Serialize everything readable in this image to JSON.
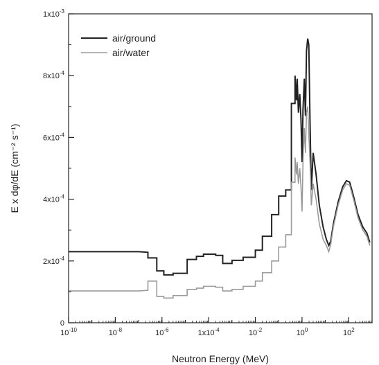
{
  "chart_data": {
    "type": "line",
    "xscale": "log",
    "xlabel": "Neutron Energy (MeV)",
    "ylabel": "E x dφ/dE (cm⁻² s⁻¹)",
    "xlim": [
      1e-10,
      1000
    ],
    "ylim": [
      0,
      0.001
    ],
    "grid": false,
    "legend_position": "top-left",
    "x_ticks": [
      {
        "value": 1e-10,
        "base": "10",
        "exp": "-10"
      },
      {
        "value": 1e-08,
        "base": "10",
        "exp": "-8"
      },
      {
        "value": 1e-06,
        "base": "10",
        "exp": "-6"
      },
      {
        "value": 0.0001,
        "base": "1x10",
        "exp": "-4"
      },
      {
        "value": 0.01,
        "base": "10",
        "exp": "-2"
      },
      {
        "value": 1,
        "base": "10",
        "exp": "0"
      },
      {
        "value": 100,
        "base": "10",
        "exp": "2"
      }
    ],
    "y_ticks": [
      {
        "value": 0,
        "base": "0",
        "exp": ""
      },
      {
        "value": 0.0002,
        "base": "2x10",
        "exp": "-4"
      },
      {
        "value": 0.0004,
        "base": "4x10",
        "exp": "-4"
      },
      {
        "value": 0.0006,
        "base": "6x10",
        "exp": "-4"
      },
      {
        "value": 0.0008,
        "base": "8x10",
        "exp": "-4"
      },
      {
        "value": 0.001,
        "base": "1x10",
        "exp": "-3"
      }
    ],
    "series": [
      {
        "name": "air/ground",
        "color": "#222222",
        "points": [
          [
            1e-10,
            0.00023
          ],
          [
            1e-07,
            0.00023
          ],
          [
            2.5e-07,
            0.000228
          ],
          [
            2.5e-07,
            0.00021
          ],
          [
            6e-07,
            0.00021
          ],
          [
            6e-07,
            0.000168
          ],
          [
            1.2e-06,
            0.000168
          ],
          [
            1.2e-06,
            0.000155
          ],
          [
            3e-06,
            0.000155
          ],
          [
            3e-06,
            0.00016
          ],
          [
            1.2e-05,
            0.00016
          ],
          [
            1.2e-05,
            0.000205
          ],
          [
            3e-05,
            0.000205
          ],
          [
            3e-05,
            0.000215
          ],
          [
            6e-05,
            0.000215
          ],
          [
            6e-05,
            0.000222
          ],
          [
            0.0002,
            0.000222
          ],
          [
            0.0002,
            0.000218
          ],
          [
            0.0004,
            0.000218
          ],
          [
            0.0004,
            0.000192
          ],
          [
            0.001,
            0.000192
          ],
          [
            0.001,
            0.000202
          ],
          [
            0.003,
            0.000202
          ],
          [
            0.003,
            0.000212
          ],
          [
            0.01,
            0.000212
          ],
          [
            0.01,
            0.000235
          ],
          [
            0.02,
            0.000235
          ],
          [
            0.02,
            0.00028
          ],
          [
            0.05,
            0.00028
          ],
          [
            0.05,
            0.00035
          ],
          [
            0.1,
            0.00035
          ],
          [
            0.1,
            0.00041
          ],
          [
            0.2,
            0.00041
          ],
          [
            0.2,
            0.00043
          ],
          [
            0.35,
            0.00043
          ],
          [
            0.35,
            0.00071
          ],
          [
            0.5,
            0.00071
          ],
          [
            0.5,
            0.0008
          ],
          [
            0.58,
            0.00072
          ],
          [
            0.62,
            0.00079
          ],
          [
            0.7,
            0.00068
          ],
          [
            0.8,
            0.00074
          ],
          [
            0.9,
            0.00066
          ],
          [
            1.0,
            0.00052
          ],
          [
            1.1,
            0.00069
          ],
          [
            1.25,
            0.00079
          ],
          [
            1.4,
            0.00067
          ],
          [
            1.55,
            0.00088
          ],
          [
            1.75,
            0.00092
          ],
          [
            1.95,
            0.0009
          ],
          [
            2.2,
            0.00065
          ],
          [
            2.5,
            0.00043
          ],
          [
            3.0,
            0.00055
          ],
          [
            4.0,
            0.00048
          ],
          [
            5.5,
            0.00038
          ],
          [
            8.0,
            0.00031
          ],
          [
            11,
            0.00027
          ],
          [
            14,
            0.00025
          ],
          [
            17,
            0.000265
          ],
          [
            22,
            0.00032
          ],
          [
            35,
            0.00039
          ],
          [
            55,
            0.00044
          ],
          [
            80,
            0.00046
          ],
          [
            110,
            0.000455
          ],
          [
            160,
            0.00041
          ],
          [
            250,
            0.00035
          ],
          [
            400,
            0.00031
          ],
          [
            600,
            0.00029
          ],
          [
            800,
            0.00026
          ]
        ]
      },
      {
        "name": "air/water",
        "color": "#9a9a9a",
        "points": [
          [
            1e-10,
            0.000103
          ],
          [
            1e-07,
            0.000103
          ],
          [
            2.5e-07,
            0.000105
          ],
          [
            2.5e-07,
            0.000135
          ],
          [
            6e-07,
            0.000135
          ],
          [
            6e-07,
            8.5e-05
          ],
          [
            1.2e-06,
            8.5e-05
          ],
          [
            1.2e-06,
            8e-05
          ],
          [
            3e-06,
            8e-05
          ],
          [
            3e-06,
            8.8e-05
          ],
          [
            1.2e-05,
            8.8e-05
          ],
          [
            1.2e-05,
            0.000108
          ],
          [
            3e-05,
            0.000108
          ],
          [
            3e-05,
            0.000112
          ],
          [
            6e-05,
            0.000112
          ],
          [
            6e-05,
            0.000118
          ],
          [
            0.0002,
            0.000118
          ],
          [
            0.0002,
            0.000115
          ],
          [
            0.0004,
            0.000115
          ],
          [
            0.0004,
            0.000103
          ],
          [
            0.001,
            0.000103
          ],
          [
            0.001,
            0.000108
          ],
          [
            0.003,
            0.000108
          ],
          [
            0.003,
            0.000118
          ],
          [
            0.01,
            0.000118
          ],
          [
            0.01,
            0.000135
          ],
          [
            0.02,
            0.000135
          ],
          [
            0.02,
            0.000162
          ],
          [
            0.05,
            0.000162
          ],
          [
            0.05,
            0.0002
          ],
          [
            0.1,
            0.0002
          ],
          [
            0.1,
            0.000245
          ],
          [
            0.2,
            0.000245
          ],
          [
            0.2,
            0.000285
          ],
          [
            0.35,
            0.000285
          ],
          [
            0.35,
            0.000455
          ],
          [
            0.5,
            0.000455
          ],
          [
            0.5,
            0.000535
          ],
          [
            0.58,
            0.00048
          ],
          [
            0.62,
            0.00052
          ],
          [
            0.7,
            0.00045
          ],
          [
            0.8,
            0.0005
          ],
          [
            0.9,
            0.00044
          ],
          [
            1.0,
            0.00036
          ],
          [
            1.1,
            0.00052
          ],
          [
            1.25,
            0.00063
          ],
          [
            1.4,
            0.00055
          ],
          [
            1.55,
            0.00068
          ],
          [
            1.75,
            0.0007
          ],
          [
            1.95,
            0.00061
          ],
          [
            2.2,
            0.00052
          ],
          [
            2.5,
            0.00038
          ],
          [
            3.0,
            0.00045
          ],
          [
            4.0,
            0.0004
          ],
          [
            5.5,
            0.00032
          ],
          [
            8.0,
            0.00027
          ],
          [
            11,
            0.00025
          ],
          [
            14,
            0.00023
          ],
          [
            17,
            0.000255
          ],
          [
            22,
            0.00031
          ],
          [
            35,
            0.00038
          ],
          [
            55,
            0.00043
          ],
          [
            80,
            0.00045
          ],
          [
            110,
            0.000445
          ],
          [
            160,
            0.0004
          ],
          [
            250,
            0.00034
          ],
          [
            400,
            0.0003
          ],
          [
            600,
            0.00028
          ],
          [
            800,
            0.00025
          ]
        ]
      }
    ]
  }
}
